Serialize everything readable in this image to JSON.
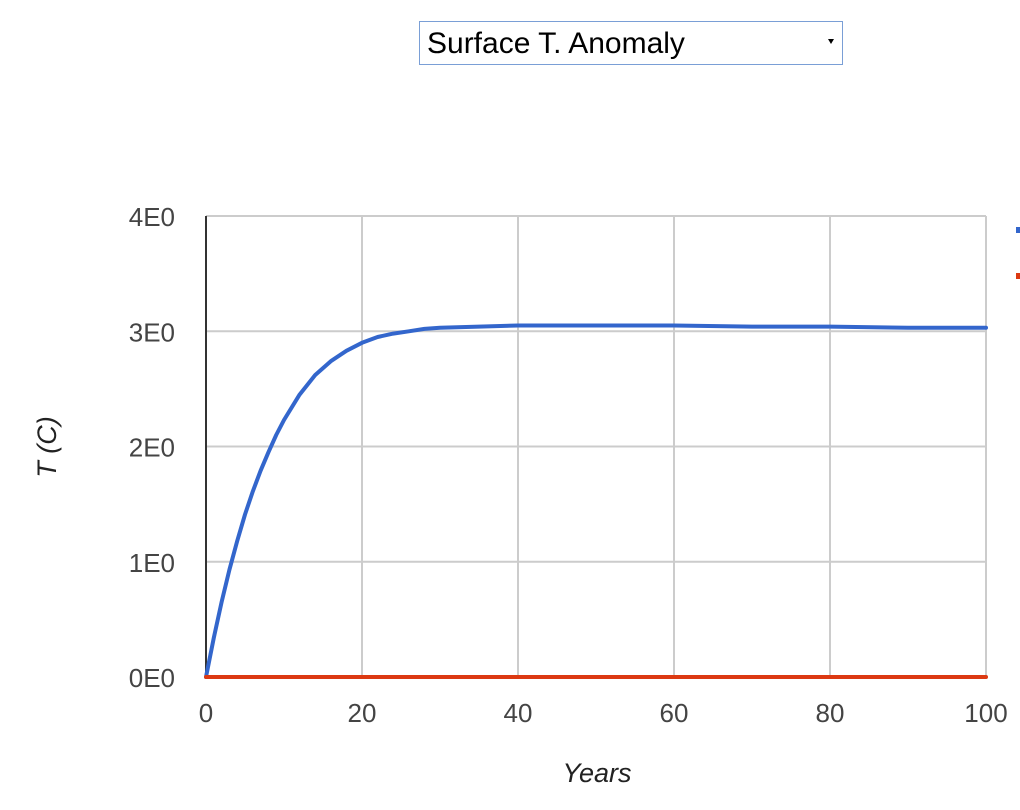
{
  "selector": {
    "selected_value": "Surface T. Anomaly"
  },
  "chart_data": {
    "type": "line",
    "title": "",
    "xlabel": "Years",
    "ylabel": "T (C)",
    "xlim": [
      0,
      100
    ],
    "ylim": [
      0,
      4
    ],
    "x_ticks": [
      "0",
      "20",
      "40",
      "60",
      "80",
      "100"
    ],
    "y_ticks": [
      "0E0",
      "1E0",
      "2E0",
      "3E0",
      "4E0"
    ],
    "grid": true,
    "legend": "right (clipped)",
    "series": [
      {
        "color": "#3366cc",
        "x": [
          0,
          1,
          2,
          3,
          4,
          5,
          6,
          7,
          8,
          9,
          10,
          12,
          14,
          16,
          18,
          20,
          22,
          24,
          26,
          28,
          30,
          35,
          40,
          45,
          50,
          60,
          70,
          80,
          90,
          100
        ],
        "y": [
          0,
          0.34,
          0.65,
          0.93,
          1.18,
          1.41,
          1.61,
          1.79,
          1.95,
          2.1,
          2.23,
          2.45,
          2.62,
          2.74,
          2.83,
          2.9,
          2.95,
          2.98,
          3.0,
          3.02,
          3.03,
          3.04,
          3.05,
          3.05,
          3.05,
          3.05,
          3.04,
          3.04,
          3.03,
          3.03
        ]
      },
      {
        "color": "#dc3912",
        "x": [
          0,
          100
        ],
        "y": [
          0,
          0
        ]
      }
    ]
  }
}
